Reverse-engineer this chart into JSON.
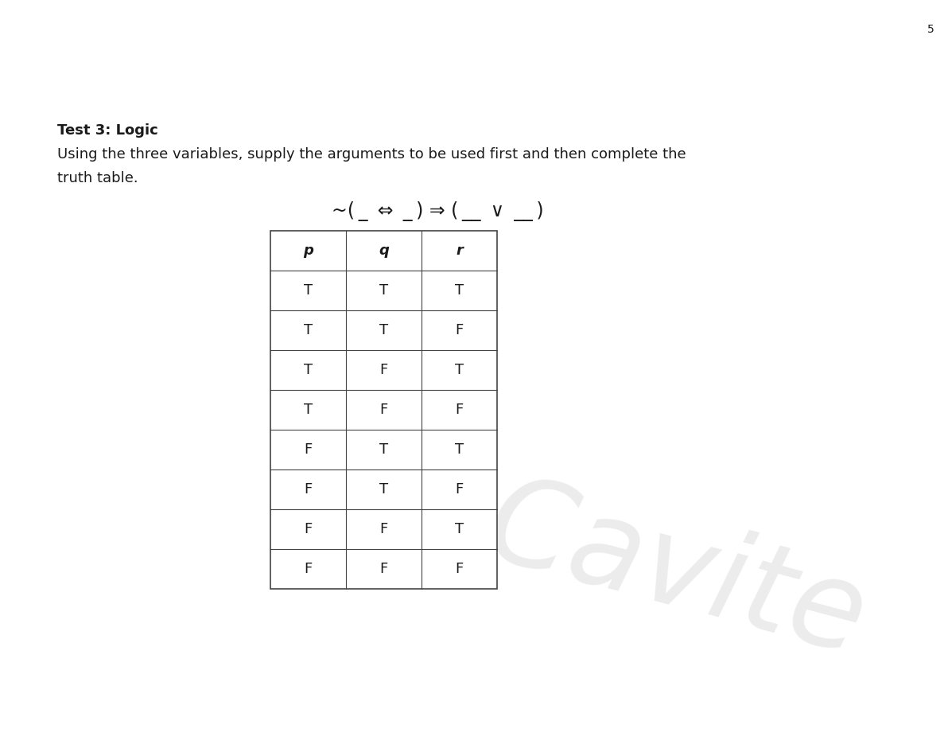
{
  "title": "Test 3: Logic",
  "desc_line1": "Using the three variables, supply the arguments to be used first and then complete the",
  "desc_line2": "truth table.",
  "formula": "~( _  ⇔  _ ) ⇒ ( __  ∨  __ )",
  "page_number": "5",
  "watermark": "Cavite",
  "headers": [
    "p",
    "q",
    "r"
  ],
  "rows": [
    [
      "T",
      "T",
      "T"
    ],
    [
      "T",
      "T",
      "F"
    ],
    [
      "T",
      "F",
      "T"
    ],
    [
      "T",
      "F",
      "F"
    ],
    [
      "F",
      "T",
      "T"
    ],
    [
      "F",
      "T",
      "F"
    ],
    [
      "F",
      "F",
      "T"
    ],
    [
      "F",
      "F",
      "F"
    ]
  ],
  "bg_color": "#ffffff",
  "text_color": "#1a1a1a",
  "line_color": "#444444",
  "watermark_color": "#d0d0d0",
  "title_fontsize": 13,
  "body_fontsize": 13,
  "formula_fontsize": 17,
  "table_fontsize": 13,
  "header_fontsize": 13
}
